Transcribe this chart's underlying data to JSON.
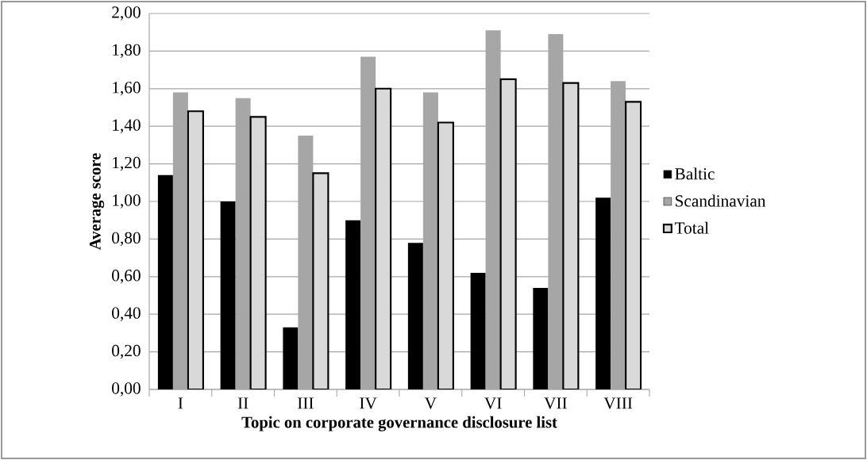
{
  "chart_data": {
    "type": "bar",
    "xlabel": "Topic on corporate governance disclosure list",
    "ylabel": "Average score",
    "categories": [
      "I",
      "II",
      "III",
      "IV",
      "V",
      "VI",
      "VII",
      "VIII"
    ],
    "series": [
      {
        "name": "Baltic",
        "color": "#000000",
        "values": [
          1.14,
          1.0,
          0.33,
          0.9,
          0.78,
          0.62,
          0.54,
          1.02
        ]
      },
      {
        "name": "Scandinavian",
        "color": "#a6a6a6",
        "values": [
          1.58,
          1.55,
          1.35,
          1.77,
          1.58,
          1.91,
          1.89,
          1.64
        ]
      },
      {
        "name": "Total",
        "color": "#d9d9d9",
        "values": [
          1.48,
          1.45,
          1.15,
          1.6,
          1.42,
          1.65,
          1.63,
          1.53
        ]
      }
    ],
    "ylim": [
      0,
      2
    ],
    "yticks": [
      {
        "value": 0,
        "label": "0,00"
      },
      {
        "value": 0.2,
        "label": "0,20"
      },
      {
        "value": 0.4,
        "label": "0,40"
      },
      {
        "value": 0.6,
        "label": "0,60"
      },
      {
        "value": 0.8,
        "label": "0,80"
      },
      {
        "value": 1,
        "label": "1,00"
      },
      {
        "value": 1.2,
        "label": "1,20"
      },
      {
        "value": 1.4,
        "label": "1,40"
      },
      {
        "value": 1.6,
        "label": "1,60"
      },
      {
        "value": 1.8,
        "label": "1,80"
      },
      {
        "value": 2,
        "label": "2,00"
      }
    ],
    "grid": "y",
    "legend": "right"
  }
}
